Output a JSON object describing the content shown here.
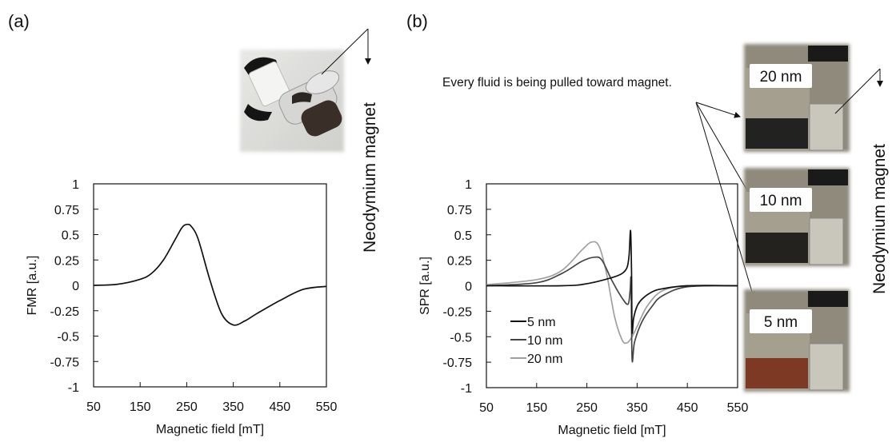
{
  "panels": {
    "a": {
      "label": "(a)",
      "magnet_label": "Neodymium magnet"
    },
    "b": {
      "label": "(b)",
      "magnet_label": "Neodymium magnet",
      "note": "Every fluid is being pulled toward magnet.",
      "photo_labels": [
        "20 nm",
        "10 nm",
        "5 nm"
      ]
    }
  },
  "chart_data": [
    {
      "type": "line",
      "title": "",
      "xlabel": "Magnetic field [mT]",
      "ylabel": "FMR [a.u.]",
      "xlim": [
        50,
        550
      ],
      "ylim": [
        -1,
        1
      ],
      "xticks": [
        "50",
        "150",
        "250",
        "350",
        "450",
        "550"
      ],
      "yticks": [
        "1",
        "0.75",
        "0.5",
        "0.25",
        "0",
        "-0.25",
        "-0.5",
        "-0.75",
        "-1"
      ],
      "grid": false,
      "series": [
        {
          "name": "FMR",
          "color": "#111111",
          "x": [
            50,
            100,
            150,
            175,
            200,
            225,
            240,
            250,
            260,
            275,
            300,
            325,
            350,
            375,
            400,
            450,
            500,
            550
          ],
          "y": [
            0,
            0.01,
            0.06,
            0.12,
            0.25,
            0.45,
            0.57,
            0.6,
            0.58,
            0.45,
            0.05,
            -0.28,
            -0.39,
            -0.35,
            -0.28,
            -0.15,
            -0.04,
            -0.01
          ]
        }
      ]
    },
    {
      "type": "line",
      "title": "",
      "xlabel": "Magnetic field [mT]",
      "ylabel": "SPR [a.u.]",
      "xlim": [
        50,
        550
      ],
      "ylim": [
        -1,
        1
      ],
      "xticks": [
        "50",
        "150",
        "250",
        "350",
        "450",
        "550"
      ],
      "yticks": [
        "1",
        "0.75",
        "0.5",
        "0.25",
        "0",
        "-0.25",
        "-0.5",
        "-0.75",
        "-1"
      ],
      "grid": false,
      "legend": "bottom-left",
      "series": [
        {
          "name": "5 nm",
          "color": "#111111",
          "x": [
            50,
            200,
            250,
            300,
            320,
            330,
            334,
            337,
            339,
            340,
            343,
            350,
            360,
            380,
            400,
            450,
            550
          ],
          "y": [
            0,
            0,
            0.02,
            0.08,
            0.12,
            0.18,
            0.3,
            0.54,
            0.1,
            -0.45,
            -0.32,
            -0.2,
            -0.13,
            -0.06,
            -0.03,
            0,
            0
          ]
        },
        {
          "name": "10 nm",
          "color": "#444444",
          "x": [
            50,
            150,
            200,
            240,
            265,
            280,
            300,
            320,
            332,
            336,
            338,
            340,
            345,
            360,
            380,
            400,
            450,
            550
          ],
          "y": [
            0,
            0.03,
            0.12,
            0.24,
            0.28,
            0.25,
            0.05,
            -0.12,
            -0.18,
            -0.05,
            0.05,
            -0.72,
            -0.55,
            -0.35,
            -0.2,
            -0.1,
            -0.01,
            0
          ]
        },
        {
          "name": "20 nm",
          "color": "#a0a0a0",
          "x": [
            50,
            150,
            200,
            240,
            260,
            275,
            290,
            305,
            320,
            330,
            340,
            350,
            370,
            400,
            450,
            550
          ],
          "y": [
            0.01,
            0.06,
            0.15,
            0.35,
            0.43,
            0.38,
            0.1,
            -0.3,
            -0.53,
            -0.56,
            -0.5,
            -0.4,
            -0.2,
            -0.05,
            0,
            0
          ]
        }
      ]
    }
  ]
}
